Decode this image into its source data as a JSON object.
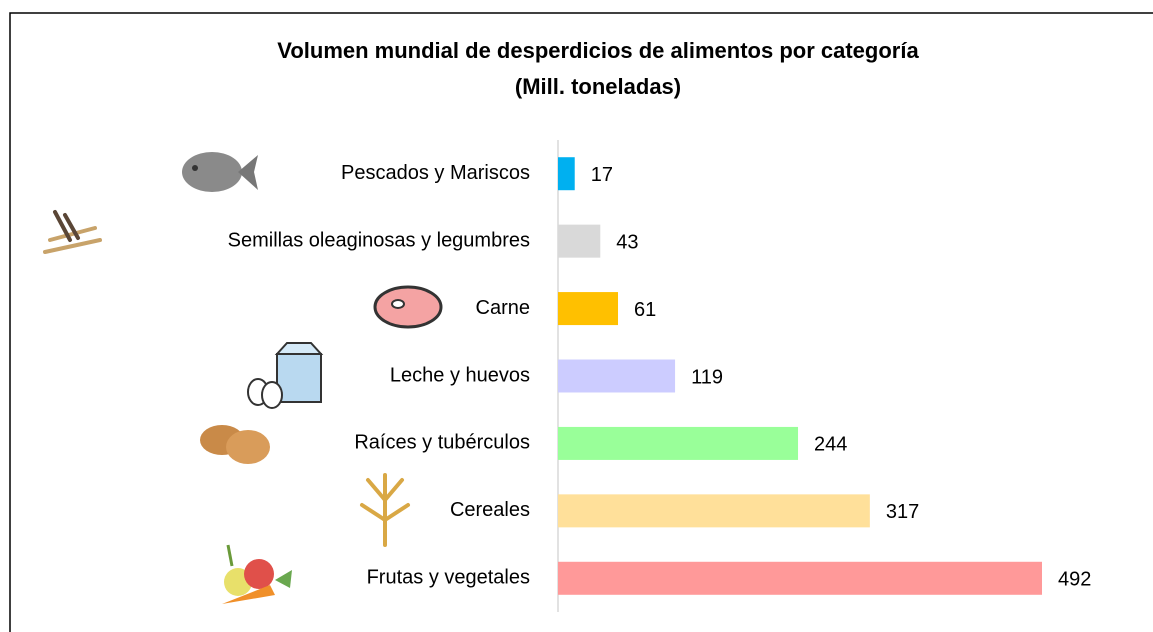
{
  "chart_data": {
    "type": "bar",
    "orientation": "horizontal",
    "title": "Volumen mundial de desperdicios de alimentos por categoría",
    "subtitle": "(Mill. toneladas)",
    "categories": [
      "Pescados y Mariscos",
      "Semillas oleaginosas y legumbres",
      "Carne",
      "Leche y huevos",
      "Raíces y tubérculos",
      "Cereales",
      "Frutas y vegetales"
    ],
    "values": [
      17,
      43,
      61,
      119,
      244,
      317,
      492
    ],
    "colors": [
      "#00b0f0",
      "#d9d9d9",
      "#ffc000",
      "#ccccff",
      "#99ff99",
      "#ffe09a",
      "#ff9999"
    ]
  }
}
